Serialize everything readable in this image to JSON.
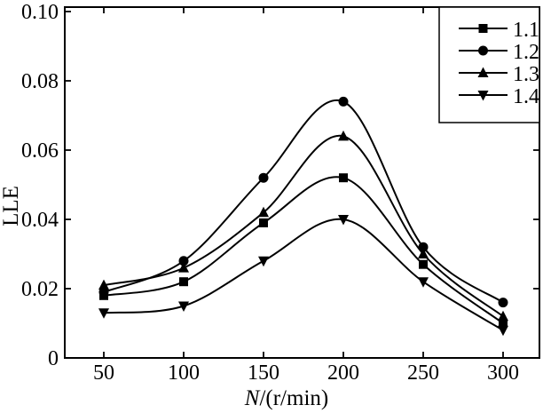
{
  "figure": {
    "background": "#ffffff",
    "frame_color": "#000000",
    "ink_color": "#000000"
  },
  "chart_data": {
    "type": "line",
    "title": "",
    "xlabel": "N/(r/min)",
    "xlabel_parts": {
      "italic": "N",
      "rest": "/(r/min)"
    },
    "ylabel": "LLE",
    "x": [
      50,
      100,
      150,
      200,
      250,
      300
    ],
    "xticks": [
      50,
      100,
      150,
      200,
      250,
      300
    ],
    "xtick_labels": [
      "50",
      "100",
      "150",
      "200",
      "250",
      "300"
    ],
    "yticks": [
      0,
      0.02,
      0.04,
      0.06,
      0.08,
      0.1
    ],
    "ytick_labels": [
      "0",
      "0.02",
      "0.04",
      "0.06",
      "0.08",
      "0.10"
    ],
    "xlim": [
      25,
      325
    ],
    "ylim": [
      0,
      0.1
    ],
    "grid": false,
    "legend_position": "top-right",
    "line_color": "#000000",
    "series": [
      {
        "name": "1.1",
        "marker": "square",
        "color": "#000000",
        "values": [
          0.018,
          0.022,
          0.039,
          0.052,
          0.027,
          0.01
        ]
      },
      {
        "name": "1.2",
        "marker": "circle",
        "color": "#000000",
        "values": [
          0.019,
          0.028,
          0.052,
          0.074,
          0.032,
          0.016
        ]
      },
      {
        "name": "1.3",
        "marker": "triangle-up",
        "color": "#000000",
        "values": [
          0.021,
          0.026,
          0.042,
          0.064,
          0.03,
          0.012
        ]
      },
      {
        "name": "1.4",
        "marker": "triangle-down",
        "color": "#000000",
        "values": [
          0.013,
          0.015,
          0.028,
          0.04,
          0.022,
          0.008
        ]
      }
    ]
  }
}
